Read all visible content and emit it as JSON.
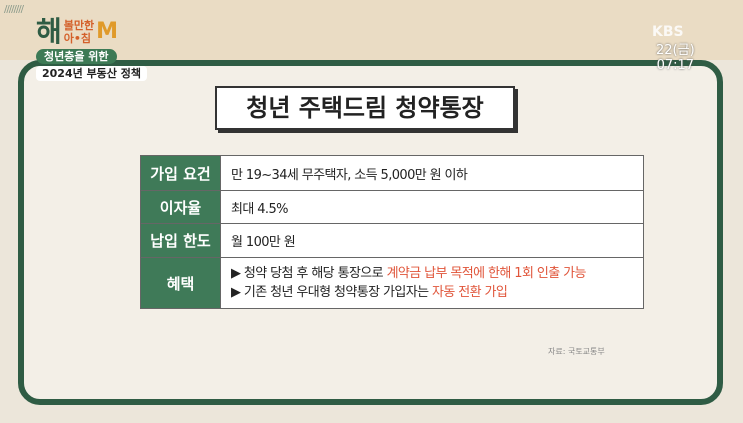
{
  "program": {
    "logo_main": "해",
    "logo_sub1": "볼만한",
    "logo_sub2": "아•침",
    "logo_m": "M",
    "tag1": "청년층을 위한",
    "tag2": "2024년 부동산 정책"
  },
  "broadcast": {
    "channel": "KBS",
    "date": "22(금)",
    "time": "07:17"
  },
  "title": "청년 주택드림 청약통장",
  "rows": [
    {
      "label": "가입 요건",
      "value": "만 19~34세 무주택자, 소득 5,000만 원 이하"
    },
    {
      "label": "이자율",
      "value": "최대 4.5%"
    },
    {
      "label": "납입 한도",
      "value": "월 100만 원"
    },
    {
      "label": "혜택",
      "lines": [
        {
          "text": "▶ 청약 당첨 후 해당 통장으로 ",
          "highlight": "계약금 납부 목적에 한해 1회 인출 가능"
        },
        {
          "text": "▶ 기존 청년 우대형 청약통장 가입자는 ",
          "highlight": "자동 전환 가입"
        }
      ]
    }
  ],
  "source": "자료: 국토교통부",
  "colors": {
    "green": "#3f7a58",
    "highlight": "#e0553a"
  }
}
